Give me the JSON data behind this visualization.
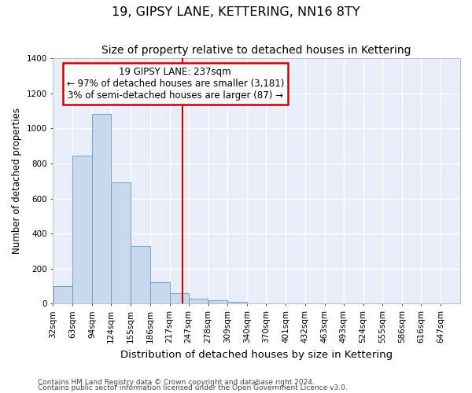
{
  "title": "19, GIPSY LANE, KETTERING, NN16 8TY",
  "subtitle": "Size of property relative to detached houses in Kettering",
  "xlabel": "Distribution of detached houses by size in Kettering",
  "ylabel": "Number of detached properties",
  "footnote1": "Contains HM Land Registry data © Crown copyright and database right 2024.",
  "footnote2": "Contains public sector information licensed under the Open Government Licence v3.0.",
  "annotation_title": "19 GIPSY LANE: 237sqm",
  "annotation_line1": "← 97% of detached houses are smaller (3,181)",
  "annotation_line2": "3% of semi-detached houses are larger (87) →",
  "bar_left_edges": [
    32,
    63,
    94,
    124,
    155,
    186,
    217,
    247,
    278,
    309,
    340,
    370,
    401,
    432,
    463,
    493,
    524,
    555,
    586,
    616
  ],
  "bar_widths": [
    31,
    31,
    30,
    31,
    31,
    31,
    30,
    31,
    31,
    31,
    30,
    31,
    31,
    31,
    30,
    31,
    31,
    31,
    30,
    31
  ],
  "bar_heights": [
    100,
    845,
    1080,
    690,
    330,
    125,
    60,
    30,
    20,
    10,
    0,
    0,
    0,
    0,
    0,
    0,
    0,
    0,
    0,
    0
  ],
  "bar_color": "#c8d8ed",
  "bar_edge_color": "#6699bb",
  "vline_x": 237,
  "vline_color": "#cc0000",
  "annotation_box_color": "#cc0000",
  "bg_color": "#e8eef8",
  "grid_color": "#ffffff",
  "xlim": [
    32,
    678
  ],
  "ylim": [
    0,
    1400
  ],
  "yticks": [
    0,
    200,
    400,
    600,
    800,
    1000,
    1200,
    1400
  ],
  "all_xtick_positions": [
    32,
    63,
    94,
    124,
    155,
    186,
    217,
    247,
    278,
    309,
    340,
    370,
    401,
    432,
    463,
    493,
    524,
    555,
    586,
    616,
    647
  ],
  "all_xtick_labels": [
    "32sqm",
    "63sqm",
    "94sqm",
    "124sqm",
    "155sqm",
    "186sqm",
    "217sqm",
    "247sqm",
    "278sqm",
    "309sqm",
    "340sqm",
    "370sqm",
    "401sqm",
    "432sqm",
    "463sqm",
    "493sqm",
    "524sqm",
    "555sqm",
    "586sqm",
    "616sqm",
    "647sqm"
  ],
  "title_fontsize": 11.5,
  "subtitle_fontsize": 10,
  "xlabel_fontsize": 9.5,
  "ylabel_fontsize": 8.5,
  "tick_fontsize": 7.5,
  "annotation_fontsize": 8.5,
  "footnote_fontsize": 6.5
}
